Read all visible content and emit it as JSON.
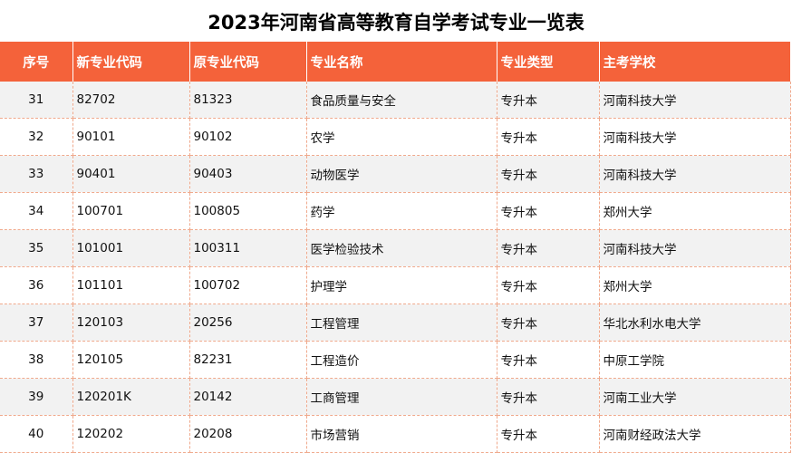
{
  "title": "2023年河南省高等教育自学考试专业一览表",
  "headers": [
    "序号",
    "新专业代码",
    "原专业代码",
    "专业名称",
    "专业类型",
    "主考学校"
  ],
  "rows": [
    [
      "31",
      "82702",
      "81323",
      "食品质量与安全",
      "专升本",
      "河南科技大学"
    ],
    [
      "32",
      "90101",
      "90102",
      "农学",
      "专升本",
      "河南科技大学"
    ],
    [
      "33",
      "90401",
      "90403",
      "动物医学",
      "专升本",
      "河南科技大学"
    ],
    [
      "34",
      "100701",
      "100805",
      "药学",
      "专升本",
      "郑州大学"
    ],
    [
      "35",
      "101001",
      "100311",
      "医学检验技术",
      "专升本",
      "河南科技大学"
    ],
    [
      "36",
      "101101",
      "100702",
      "护理学",
      "专升本",
      "郑州大学"
    ],
    [
      "37",
      "120103",
      "20256",
      "工程管理",
      "专升本",
      "华北水利水电大学"
    ],
    [
      "38",
      "120105",
      "82231",
      "工程造价",
      "专升本",
      "中原工学院"
    ],
    [
      "39",
      "120201K",
      "20142",
      "工商管理",
      "专升本",
      "河南工业大学"
    ],
    [
      "40",
      "120202",
      "20208",
      "市场营销",
      "专升本",
      "河南财经政法大学"
    ]
  ]
}
